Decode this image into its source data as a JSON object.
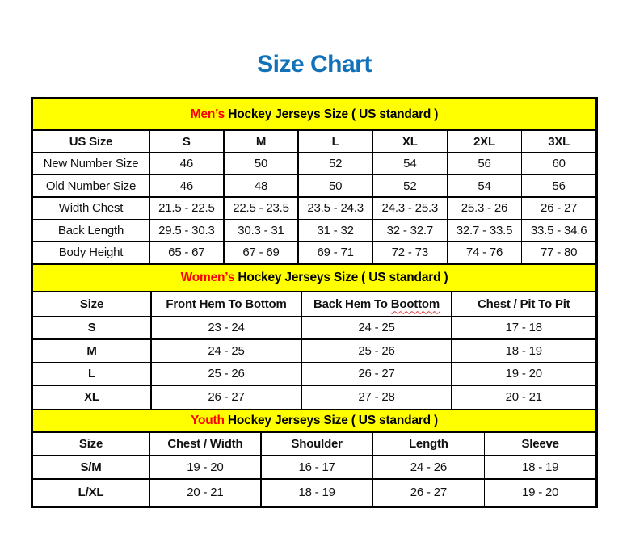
{
  "page": {
    "title": "Size Chart"
  },
  "colors": {
    "title_blue": "#1171B9",
    "band_yellow": "#FFFF00",
    "accent_red": "#FF0000",
    "spellcheck_red": "#E03535",
    "border_black": "#000000"
  },
  "mens": {
    "band": {
      "highlight": "Men’s",
      "rest": " Hockey Jerseys Size ( US standard )"
    },
    "header": [
      "US Size",
      "S",
      "M",
      "L",
      "XL",
      "2XL",
      "3XL"
    ],
    "rows": [
      {
        "label": "New Number Size",
        "values": [
          "46",
          "50",
          "52",
          "54",
          "56",
          "60"
        ]
      },
      {
        "label": "Old Number Size",
        "values": [
          "46",
          "48",
          "50",
          "52",
          "54",
          "56"
        ]
      },
      {
        "label": "Width Chest",
        "values": [
          "21.5 - 22.5",
          "22.5 - 23.5",
          "23.5 - 24.3",
          "24.3 - 25.3",
          "25.3 - 26",
          "26 - 27"
        ]
      },
      {
        "label": "Back Length",
        "values": [
          "29.5 - 30.3",
          "30.3 - 31",
          "31 - 32",
          "32 - 32.7",
          "32.7 - 33.5",
          "33.5 - 34.6"
        ]
      },
      {
        "label": "Body Height",
        "values": [
          "65 - 67",
          "67 - 69",
          "69 - 71",
          "72 - 73",
          "74 - 76",
          "77 - 80"
        ]
      }
    ]
  },
  "womens": {
    "band": {
      "highlight": "Women’s",
      "rest": " Hockey Jerseys Size ( US standard )"
    },
    "header": {
      "size": "Size",
      "front": "Front Hem To Bottom",
      "back_prefix": "Back Hem To ",
      "back_misspelled": "Boottom",
      "chest": "Chest / Pit To Pit"
    },
    "rows": [
      {
        "label": "S",
        "values": [
          "23 - 24",
          "24 - 25",
          "17 - 18"
        ]
      },
      {
        "label": "M",
        "values": [
          "24 - 25",
          "25 - 26",
          "18 - 19"
        ]
      },
      {
        "label": "L",
        "values": [
          "25 - 26",
          "26 - 27",
          "19 - 20"
        ]
      },
      {
        "label": "XL",
        "values": [
          "26 - 27",
          "27 - 28",
          "20 - 21"
        ]
      }
    ]
  },
  "youth": {
    "band": {
      "highlight": "Youth",
      "rest": " Hockey Jerseys Size ( US standard )"
    },
    "header": [
      "Size",
      "Chest / Width",
      "Shoulder",
      "Length",
      "Sleeve"
    ],
    "rows": [
      {
        "label": "S/M",
        "values": [
          "19 - 20",
          "16 - 17",
          "24 - 26",
          "18 - 19"
        ]
      },
      {
        "label": "L/XL",
        "values": [
          "20 - 21",
          "18 - 19",
          "26 - 27",
          "19 - 20"
        ]
      }
    ]
  }
}
